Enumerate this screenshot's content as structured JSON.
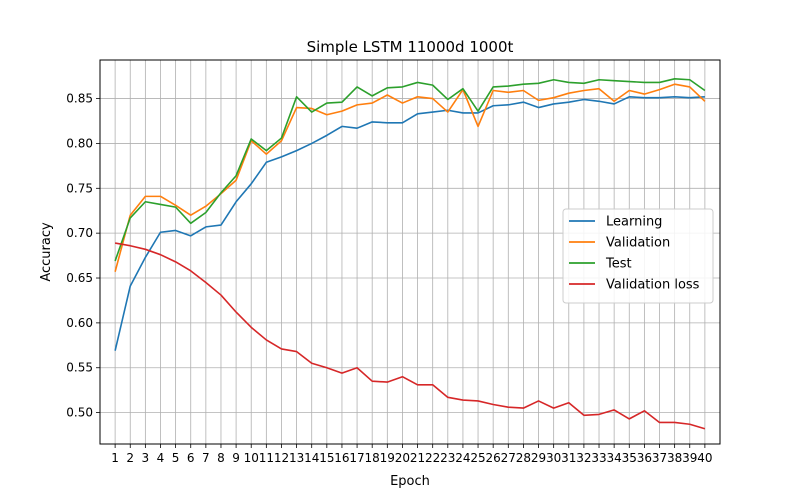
{
  "chart_data": {
    "type": "line",
    "title": "Simple LSTM 11000d 1000t",
    "xlabel": "Epoch",
    "ylabel": "Accuracy",
    "x": [
      1,
      2,
      3,
      4,
      5,
      6,
      7,
      8,
      9,
      10,
      11,
      12,
      13,
      14,
      15,
      16,
      17,
      18,
      19,
      20,
      21,
      22,
      23,
      24,
      25,
      26,
      27,
      28,
      29,
      30,
      31,
      32,
      33,
      34,
      35,
      36,
      37,
      38,
      39,
      40
    ],
    "xtick_labels": [
      "1",
      "2",
      "3",
      "4",
      "5",
      "6",
      "7",
      "8",
      "9",
      "10",
      "11",
      "12",
      "13",
      "14",
      "15",
      "16",
      "17",
      "18",
      "19",
      "20",
      "21",
      "22",
      "23",
      "24",
      "25",
      "26",
      "27",
      "28",
      "29",
      "30",
      "31",
      "32",
      "33",
      "34",
      "35",
      "36",
      "37",
      "38",
      "39",
      "40"
    ],
    "ylim": [
      0.465,
      0.893
    ],
    "yticks": [
      0.5,
      0.55,
      0.6,
      0.65,
      0.7,
      0.75,
      0.8,
      0.85
    ],
    "ytick_labels": [
      "0.50",
      "0.55",
      "0.60",
      "0.65",
      "0.70",
      "0.75",
      "0.80",
      "0.85"
    ],
    "grid": true,
    "legend_position": "center-right",
    "series": [
      {
        "name": "Learning",
        "color": "#1f77b4",
        "values": [
          0.569,
          0.641,
          0.673,
          0.701,
          0.703,
          0.697,
          0.707,
          0.709,
          0.735,
          0.755,
          0.779,
          0.785,
          0.792,
          0.8,
          0.809,
          0.819,
          0.817,
          0.824,
          0.823,
          0.823,
          0.833,
          0.835,
          0.837,
          0.834,
          0.834,
          0.842,
          0.843,
          0.846,
          0.84,
          0.844,
          0.846,
          0.849,
          0.847,
          0.844,
          0.852,
          0.851,
          0.851,
          0.852,
          0.851,
          0.852
        ]
      },
      {
        "name": "Validation",
        "color": "#ff7f0e",
        "values": [
          0.657,
          0.72,
          0.741,
          0.741,
          0.731,
          0.72,
          0.73,
          0.744,
          0.759,
          0.803,
          0.788,
          0.803,
          0.84,
          0.839,
          0.832,
          0.836,
          0.843,
          0.845,
          0.854,
          0.845,
          0.852,
          0.85,
          0.835,
          0.86,
          0.819,
          0.859,
          0.857,
          0.859,
          0.848,
          0.851,
          0.856,
          0.859,
          0.861,
          0.847,
          0.859,
          0.855,
          0.86,
          0.866,
          0.863,
          0.847
        ]
      },
      {
        "name": "Test",
        "color": "#2ca02c",
        "values": [
          0.669,
          0.717,
          0.735,
          0.732,
          0.729,
          0.711,
          0.723,
          0.745,
          0.764,
          0.805,
          0.792,
          0.806,
          0.852,
          0.835,
          0.845,
          0.846,
          0.863,
          0.853,
          0.862,
          0.863,
          0.868,
          0.865,
          0.849,
          0.861,
          0.836,
          0.863,
          0.864,
          0.866,
          0.867,
          0.871,
          0.868,
          0.867,
          0.871,
          0.87,
          0.869,
          0.868,
          0.868,
          0.872,
          0.871,
          0.859
        ]
      },
      {
        "name": "Validation loss",
        "color": "#d62728",
        "values": [
          0.689,
          0.686,
          0.682,
          0.676,
          0.668,
          0.658,
          0.645,
          0.631,
          0.612,
          0.595,
          0.581,
          0.571,
          0.568,
          0.555,
          0.55,
          0.544,
          0.55,
          0.535,
          0.534,
          0.54,
          0.531,
          0.531,
          0.517,
          0.514,
          0.513,
          0.509,
          0.506,
          0.505,
          0.513,
          0.505,
          0.511,
          0.497,
          0.498,
          0.503,
          0.493,
          0.502,
          0.489,
          0.489,
          0.487,
          0.482
        ]
      }
    ]
  }
}
